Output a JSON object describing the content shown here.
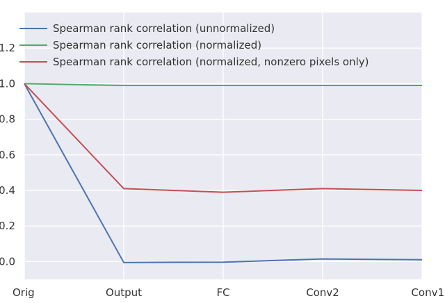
{
  "chart_data": {
    "type": "line",
    "categories": [
      "Orig",
      "Output",
      "FC",
      "Conv2",
      "Conv1"
    ],
    "series": [
      {
        "name": "Spearman rank correlation (unnormalized)",
        "values": [
          1.0,
          -0.005,
          -0.003,
          0.015,
          0.01
        ],
        "color": "#4c72b0"
      },
      {
        "name": "Spearman rank correlation (normalized)",
        "values": [
          1.0,
          0.99,
          0.99,
          0.99,
          0.99
        ],
        "color": "#55a868"
      },
      {
        "name": "Spearman rank correlation (normalized, nonzero pixels only)",
        "values": [
          1.0,
          0.41,
          0.39,
          0.41,
          0.4
        ],
        "color": "#c44e52"
      }
    ],
    "yticks": [
      "0.0",
      "0.2",
      "0.4",
      "0.6",
      "0.8",
      "1.0",
      "1.2"
    ],
    "ylim": [
      -0.1,
      1.4
    ],
    "title": "",
    "xlabel": "",
    "ylabel": "",
    "grid": true,
    "legend_position": "top-left",
    "background_color": "#eaeaf2",
    "grid_color": "#ffffff"
  }
}
